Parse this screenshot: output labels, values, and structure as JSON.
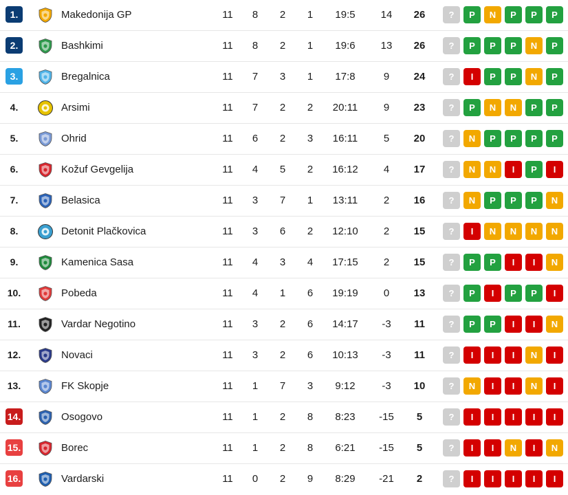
{
  "colors": {
    "rank_champions": "#0b3c73",
    "rank_europa": "#2aa1e3",
    "rank_relegation_playoff": "#c81c1c",
    "rank_relegation": "#e84040",
    "form_win": "#23a140",
    "form_draw": "#f2a800",
    "form_loss": "#d40000",
    "form_next": "#cfcfcf"
  },
  "rows": [
    {
      "rank": "1.",
      "rank_style": "ucl",
      "team": "Makedonija GP",
      "logo_color": "#f2a800",
      "logo_icon": "shield-icon",
      "p": "11",
      "w": "8",
      "d": "2",
      "l": "1",
      "goals": "19:5",
      "gd": "14",
      "pts": "26",
      "form": [
        "?",
        "P",
        "N",
        "P",
        "P",
        "P"
      ]
    },
    {
      "rank": "2.",
      "rank_style": "ucl",
      "team": "Bashkimi",
      "logo_color": "#2e9a4c",
      "logo_icon": "shield-icon",
      "p": "11",
      "w": "8",
      "d": "2",
      "l": "1",
      "goals": "19:6",
      "gd": "13",
      "pts": "26",
      "form": [
        "?",
        "P",
        "P",
        "P",
        "N",
        "P"
      ]
    },
    {
      "rank": "3.",
      "rank_style": "uel",
      "team": "Bregalnica",
      "logo_color": "#4fb3e8",
      "logo_icon": "shield-icon",
      "p": "11",
      "w": "7",
      "d": "3",
      "l": "1",
      "goals": "17:8",
      "gd": "9",
      "pts": "24",
      "form": [
        "?",
        "I",
        "P",
        "P",
        "N",
        "P"
      ]
    },
    {
      "rank": "4.",
      "rank_style": "plain",
      "team": "Arsimi",
      "logo_color": "#e6c200",
      "logo_icon": "round-crest-icon",
      "p": "11",
      "w": "7",
      "d": "2",
      "l": "2",
      "goals": "20:11",
      "gd": "9",
      "pts": "23",
      "form": [
        "?",
        "P",
        "N",
        "N",
        "P",
        "P"
      ]
    },
    {
      "rank": "5.",
      "rank_style": "plain",
      "team": "Ohrid",
      "logo_color": "#7a9ad6",
      "logo_icon": "shield-icon",
      "p": "11",
      "w": "6",
      "d": "2",
      "l": "3",
      "goals": "16:11",
      "gd": "5",
      "pts": "20",
      "form": [
        "?",
        "N",
        "P",
        "P",
        "P",
        "P"
      ]
    },
    {
      "rank": "6.",
      "rank_style": "plain",
      "team": "Kožuf Gevgelija",
      "logo_color": "#d8262e",
      "logo_icon": "shield-icon",
      "p": "11",
      "w": "4",
      "d": "5",
      "l": "2",
      "goals": "16:12",
      "gd": "4",
      "pts": "17",
      "form": [
        "?",
        "N",
        "N",
        "I",
        "P",
        "I"
      ]
    },
    {
      "rank": "7.",
      "rank_style": "plain",
      "team": "Belasica",
      "logo_color": "#2b63b8",
      "logo_icon": "shield-icon",
      "p": "11",
      "w": "3",
      "d": "7",
      "l": "1",
      "goals": "13:11",
      "gd": "2",
      "pts": "16",
      "form": [
        "?",
        "N",
        "P",
        "P",
        "P",
        "N"
      ]
    },
    {
      "rank": "8.",
      "rank_style": "plain",
      "team": "Detonit Plačkovica",
      "logo_color": "#3a9fd0",
      "logo_icon": "round-crest-icon",
      "p": "11",
      "w": "3",
      "d": "6",
      "l": "2",
      "goals": "12:10",
      "gd": "2",
      "pts": "15",
      "form": [
        "?",
        "I",
        "N",
        "N",
        "N",
        "N"
      ]
    },
    {
      "rank": "9.",
      "rank_style": "plain",
      "team": "Kamenica Sasa",
      "logo_color": "#1f8a3c",
      "logo_icon": "shield-icon",
      "p": "11",
      "w": "4",
      "d": "3",
      "l": "4",
      "goals": "17:15",
      "gd": "2",
      "pts": "15",
      "form": [
        "?",
        "P",
        "P",
        "I",
        "I",
        "N"
      ]
    },
    {
      "rank": "10.",
      "rank_style": "plain",
      "team": "Pobeda",
      "logo_color": "#e03a3a",
      "logo_icon": "shield-icon",
      "p": "11",
      "w": "4",
      "d": "1",
      "l": "6",
      "goals": "19:19",
      "gd": "0",
      "pts": "13",
      "form": [
        "?",
        "P",
        "I",
        "P",
        "P",
        "I"
      ]
    },
    {
      "rank": "11.",
      "rank_style": "plain",
      "team": "Vardar Negotino",
      "logo_color": "#222222",
      "logo_icon": "shield-icon",
      "p": "11",
      "w": "3",
      "d": "2",
      "l": "6",
      "goals": "14:17",
      "gd": "-3",
      "pts": "11",
      "form": [
        "?",
        "P",
        "P",
        "I",
        "I",
        "N"
      ]
    },
    {
      "rank": "12.",
      "rank_style": "plain",
      "team": "Novaci",
      "logo_color": "#2a3a8a",
      "logo_icon": "shield-icon",
      "p": "11",
      "w": "3",
      "d": "2",
      "l": "6",
      "goals": "10:13",
      "gd": "-3",
      "pts": "11",
      "form": [
        "?",
        "I",
        "I",
        "I",
        "N",
        "I"
      ]
    },
    {
      "rank": "13.",
      "rank_style": "plain",
      "team": "FK Skopje",
      "logo_color": "#5a86d0",
      "logo_icon": "shield-icon",
      "p": "11",
      "w": "1",
      "d": "7",
      "l": "3",
      "goals": "9:12",
      "gd": "-3",
      "pts": "10",
      "form": [
        "?",
        "N",
        "I",
        "I",
        "N",
        "I"
      ]
    },
    {
      "rank": "14.",
      "rank_style": "rpo",
      "team": "Osogovo",
      "logo_color": "#2c62b0",
      "logo_icon": "shield-icon",
      "p": "11",
      "w": "1",
      "d": "2",
      "l": "8",
      "goals": "8:23",
      "gd": "-15",
      "pts": "5",
      "form": [
        "?",
        "I",
        "I",
        "I",
        "I",
        "I"
      ]
    },
    {
      "rank": "15.",
      "rank_style": "rel",
      "team": "Borec",
      "logo_color": "#d8262e",
      "logo_icon": "shield-icon",
      "p": "11",
      "w": "1",
      "d": "2",
      "l": "8",
      "goals": "6:21",
      "gd": "-15",
      "pts": "5",
      "form": [
        "?",
        "I",
        "I",
        "N",
        "I",
        "N"
      ]
    },
    {
      "rank": "16.",
      "rank_style": "rel",
      "team": "Vardarski",
      "logo_color": "#1f5fb0",
      "logo_icon": "shield-icon",
      "p": "11",
      "w": "0",
      "d": "2",
      "l": "9",
      "goals": "8:29",
      "gd": "-21",
      "pts": "2",
      "form": [
        "?",
        "I",
        "I",
        "I",
        "I",
        "I"
      ]
    }
  ]
}
